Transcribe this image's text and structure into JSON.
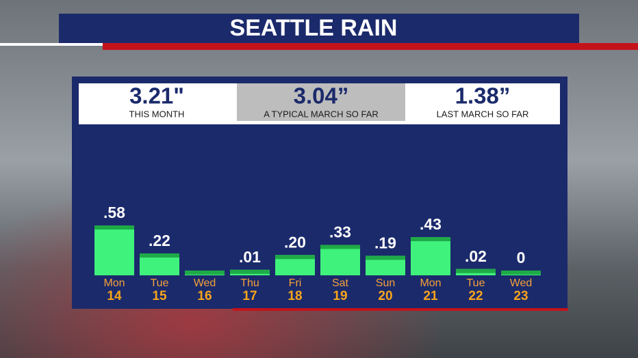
{
  "chart_data": {
    "type": "bar",
    "title": "SEATTLE RAIN",
    "stats": [
      {
        "value": "3.21\"",
        "label": "THIS MONTH"
      },
      {
        "value": "3.04”",
        "label": "A TYPICAL MARCH SO FAR"
      },
      {
        "value": "1.38”",
        "label": "LAST MARCH SO FAR"
      }
    ],
    "categories": [
      "Mon",
      "Tue",
      "Wed",
      "Thu",
      "Fri",
      "Sat",
      "Sun",
      "Mon",
      "Tue",
      "Wed"
    ],
    "dates": [
      "14",
      "15",
      "16",
      "17",
      "18",
      "19",
      "20",
      "21",
      "22",
      "23"
    ],
    "values": [
      0.58,
      0.22,
      0,
      0.01,
      0.2,
      0.33,
      0.19,
      0.43,
      0.02,
      0
    ],
    "value_labels": [
      ".58",
      ".22",
      null,
      ".01",
      ".20",
      ".33",
      ".19",
      ".43",
      ".02",
      "0"
    ],
    "color": "#3ff27c"
  }
}
